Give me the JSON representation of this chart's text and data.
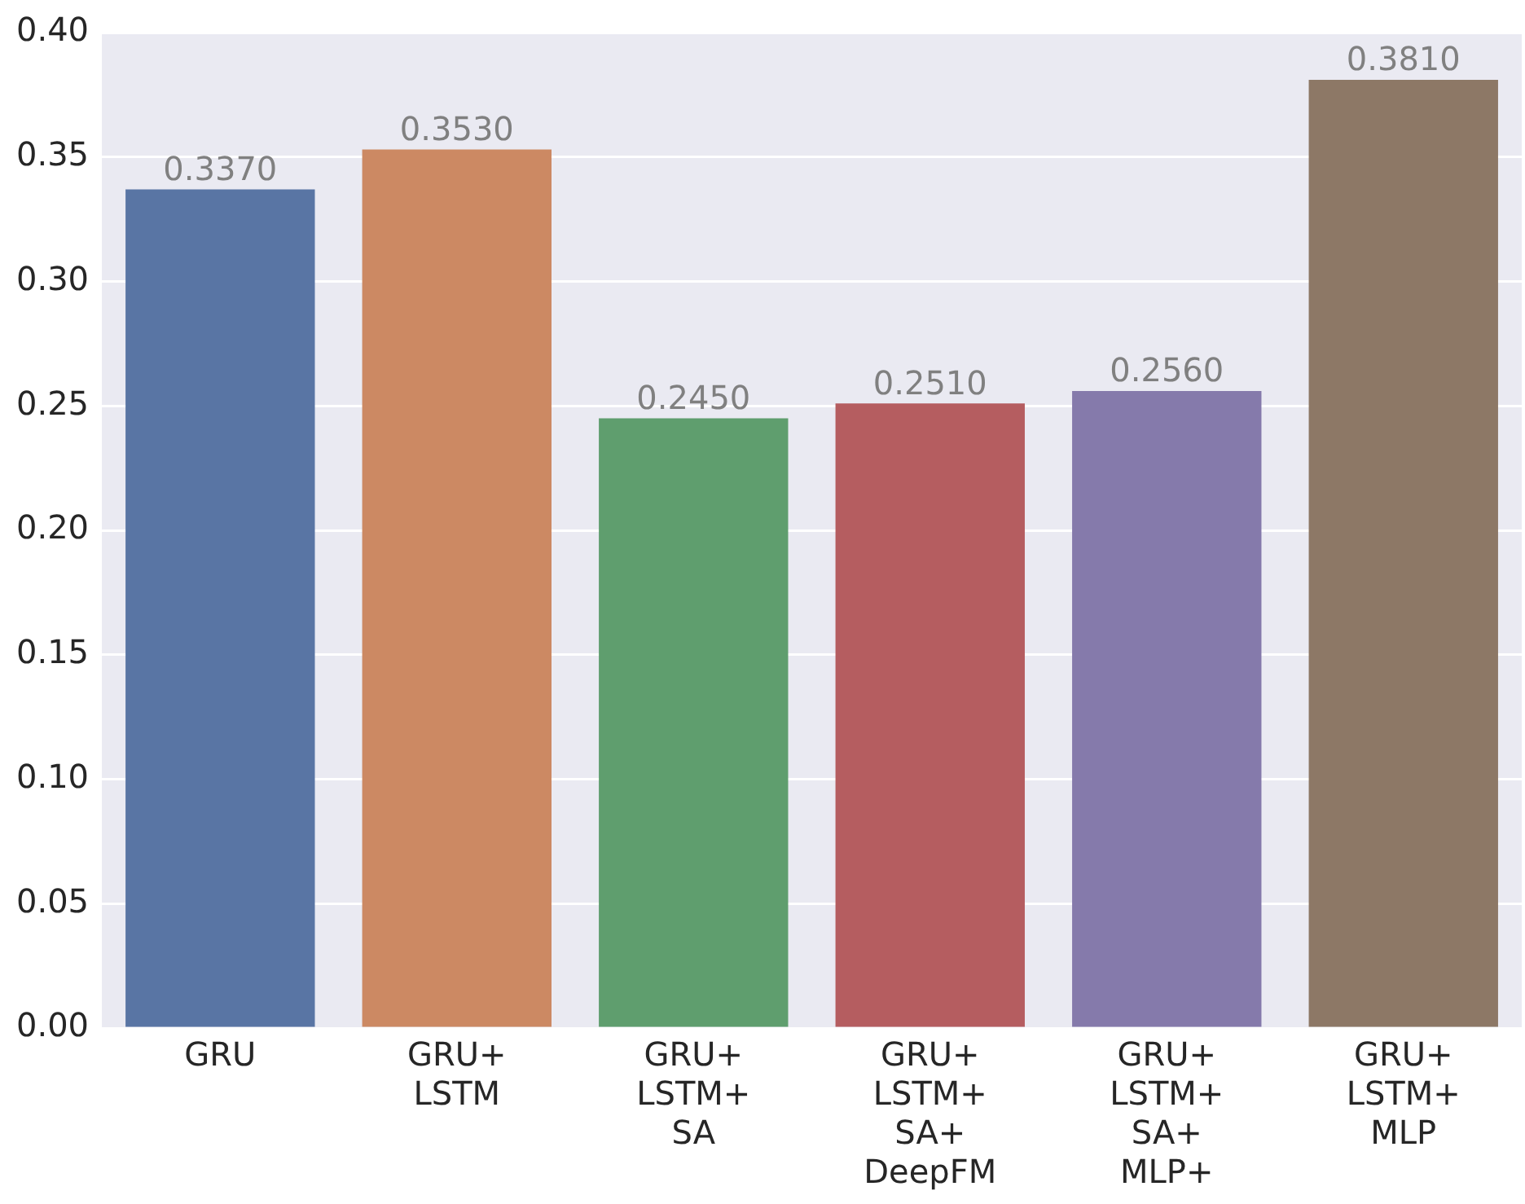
{
  "chart_data": {
    "type": "bar",
    "categories": [
      "GRU",
      "GRU+\nLSTM",
      "GRU+\nLSTM+\nSA",
      "GRU+\nLSTM+\nSA+\nDeepFM",
      "GRU+\nLSTM+\nSA+\nMLP+",
      "GRU+\nLSTM+\nMLP"
    ],
    "values": [
      0.337,
      0.353,
      0.245,
      0.251,
      0.256,
      0.381
    ],
    "colors": [
      "#5975a4",
      "#cc8963",
      "#5f9e6e",
      "#b55d60",
      "#857aab",
      "#8d7866"
    ],
    "value_labels": [
      "0.3370",
      "0.3530",
      "0.2450",
      "0.2510",
      "0.2560",
      "0.3810"
    ],
    "ylim": [
      0,
      0.4
    ],
    "yticks": [
      {
        "value": 0,
        "label": "0.00"
      },
      {
        "value": 0.05,
        "label": "0.05"
      },
      {
        "value": 0.1,
        "label": "0.10"
      },
      {
        "value": 0.15,
        "label": "0.15"
      },
      {
        "value": 0.2,
        "label": "0.20"
      },
      {
        "value": 0.25,
        "label": "0.25"
      },
      {
        "value": 0.3,
        "label": "0.30"
      },
      {
        "value": 0.35,
        "label": "0.35"
      },
      {
        "value": 0.4,
        "label": "0.40"
      }
    ],
    "grid": "y",
    "legend": false
  }
}
